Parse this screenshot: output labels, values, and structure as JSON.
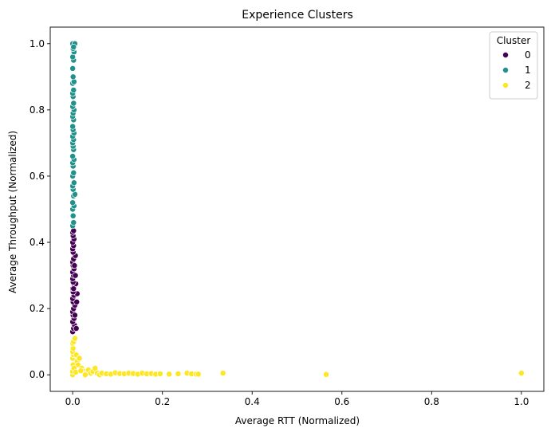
{
  "chart_data": {
    "type": "scatter",
    "title": "Experience Clusters",
    "xlabel": "Average RTT (Normalized)",
    "ylabel": "Average Throughput (Normalized)",
    "xlim": [
      -0.05,
      1.05
    ],
    "ylim": [
      -0.05,
      1.05
    ],
    "xticks": [
      "0.0",
      "0.2",
      "0.4",
      "0.6",
      "0.8",
      "1.0"
    ],
    "yticks": [
      "0.0",
      "0.2",
      "0.4",
      "0.6",
      "0.8",
      "1.0"
    ],
    "grid": false,
    "legend": {
      "title": "Cluster",
      "placement": "top-right"
    },
    "series": [
      {
        "name": "0",
        "color": "#440154",
        "points": [
          [
            0.0,
            0.13
          ],
          [
            0.002,
            0.14
          ],
          [
            0.004,
            0.15
          ],
          [
            0.0,
            0.16
          ],
          [
            0.003,
            0.17
          ],
          [
            0.001,
            0.18
          ],
          [
            0.0,
            0.19
          ],
          [
            0.002,
            0.2
          ],
          [
            0.005,
            0.21
          ],
          [
            0.001,
            0.22
          ],
          [
            0.0,
            0.23
          ],
          [
            0.003,
            0.24
          ],
          [
            0.01,
            0.245
          ],
          [
            0.001,
            0.25
          ],
          [
            0.0,
            0.26
          ],
          [
            0.004,
            0.27
          ],
          [
            0.007,
            0.275
          ],
          [
            0.001,
            0.28
          ],
          [
            0.0,
            0.29
          ],
          [
            0.002,
            0.3
          ],
          [
            0.0,
            0.31
          ],
          [
            0.003,
            0.32
          ],
          [
            0.001,
            0.33
          ],
          [
            0.0,
            0.34
          ],
          [
            0.002,
            0.35
          ],
          [
            0.006,
            0.36
          ],
          [
            0.001,
            0.37
          ],
          [
            0.0,
            0.38
          ],
          [
            0.002,
            0.39
          ],
          [
            0.0,
            0.4
          ],
          [
            0.003,
            0.41
          ],
          [
            0.001,
            0.42
          ],
          [
            0.0,
            0.43
          ],
          [
            0.002,
            0.435
          ],
          [
            0.008,
            0.14
          ],
          [
            0.005,
            0.18
          ],
          [
            0.009,
            0.22
          ],
          [
            0.006,
            0.3
          ],
          [
            0.004,
            0.33
          ],
          [
            0.002,
            0.26
          ]
        ]
      },
      {
        "name": "1",
        "color": "#21918c",
        "points": [
          [
            0.0,
            0.45
          ],
          [
            0.002,
            0.46
          ],
          [
            0.001,
            0.48
          ],
          [
            0.0,
            0.5
          ],
          [
            0.003,
            0.51
          ],
          [
            0.0,
            0.52
          ],
          [
            0.002,
            0.54
          ],
          [
            0.005,
            0.545
          ],
          [
            0.001,
            0.56
          ],
          [
            0.0,
            0.57
          ],
          [
            0.003,
            0.58
          ],
          [
            0.0,
            0.6
          ],
          [
            0.002,
            0.61
          ],
          [
            0.001,
            0.63
          ],
          [
            0.0,
            0.64
          ],
          [
            0.003,
            0.65
          ],
          [
            0.0,
            0.66
          ],
          [
            0.002,
            0.68
          ],
          [
            0.001,
            0.69
          ],
          [
            0.0,
            0.7
          ],
          [
            0.002,
            0.71
          ],
          [
            0.0,
            0.72
          ],
          [
            0.003,
            0.73
          ],
          [
            0.001,
            0.74
          ],
          [
            0.0,
            0.75
          ],
          [
            0.002,
            0.77
          ],
          [
            0.0,
            0.78
          ],
          [
            0.001,
            0.79
          ],
          [
            0.003,
            0.8
          ],
          [
            0.0,
            0.81
          ],
          [
            0.002,
            0.82
          ],
          [
            0.001,
            0.84
          ],
          [
            0.0,
            0.85
          ],
          [
            0.002,
            0.86
          ],
          [
            0.0,
            0.88
          ],
          [
            0.003,
            0.885
          ],
          [
            0.001,
            0.9
          ],
          [
            0.0,
            0.925
          ],
          [
            0.002,
            0.95
          ],
          [
            0.0,
            0.96
          ],
          [
            0.003,
            0.975
          ],
          [
            0.001,
            0.985
          ],
          [
            0.0,
            1.0
          ],
          [
            0.005,
            1.0
          ],
          [
            0.002,
            0.99
          ]
        ]
      },
      {
        "name": "2",
        "color": "#fde725",
        "points": [
          [
            0.0,
            0.0
          ],
          [
            0.0,
            0.01
          ],
          [
            0.001,
            0.03
          ],
          [
            0.0,
            0.05
          ],
          [
            0.002,
            0.06
          ],
          [
            0.0,
            0.07
          ],
          [
            0.001,
            0.08
          ],
          [
            0.0,
            0.095
          ],
          [
            0.002,
            0.1
          ],
          [
            0.005,
            0.11
          ],
          [
            0.008,
            0.06
          ],
          [
            0.01,
            0.04
          ],
          [
            0.012,
            0.03
          ],
          [
            0.015,
            0.05
          ],
          [
            0.02,
            0.02
          ],
          [
            0.025,
            0.01
          ],
          [
            0.03,
            0.005
          ],
          [
            0.035,
            0.015
          ],
          [
            0.04,
            0.005
          ],
          [
            0.045,
            0.01
          ],
          [
            0.05,
            0.02
          ],
          [
            0.055,
            0.005
          ],
          [
            0.06,
            0.0
          ],
          [
            0.065,
            0.005
          ],
          [
            0.075,
            0.003
          ],
          [
            0.085,
            0.002
          ],
          [
            0.095,
            0.006
          ],
          [
            0.105,
            0.004
          ],
          [
            0.115,
            0.003
          ],
          [
            0.125,
            0.005
          ],
          [
            0.135,
            0.004
          ],
          [
            0.145,
            0.002
          ],
          [
            0.155,
            0.005
          ],
          [
            0.165,
            0.003
          ],
          [
            0.175,
            0.004
          ],
          [
            0.185,
            0.002
          ],
          [
            0.195,
            0.003
          ],
          [
            0.215,
            0.002
          ],
          [
            0.235,
            0.003
          ],
          [
            0.255,
            0.005
          ],
          [
            0.265,
            0.003
          ],
          [
            0.275,
            0.002
          ],
          [
            0.28,
            0.002
          ],
          [
            0.335,
            0.005
          ],
          [
            0.565,
            0.001
          ],
          [
            1.0,
            0.005
          ],
          [
            0.003,
            0.02
          ],
          [
            0.007,
            0.008
          ],
          [
            0.018,
            0.012
          ],
          [
            0.028,
            0.0
          ]
        ]
      }
    ]
  }
}
